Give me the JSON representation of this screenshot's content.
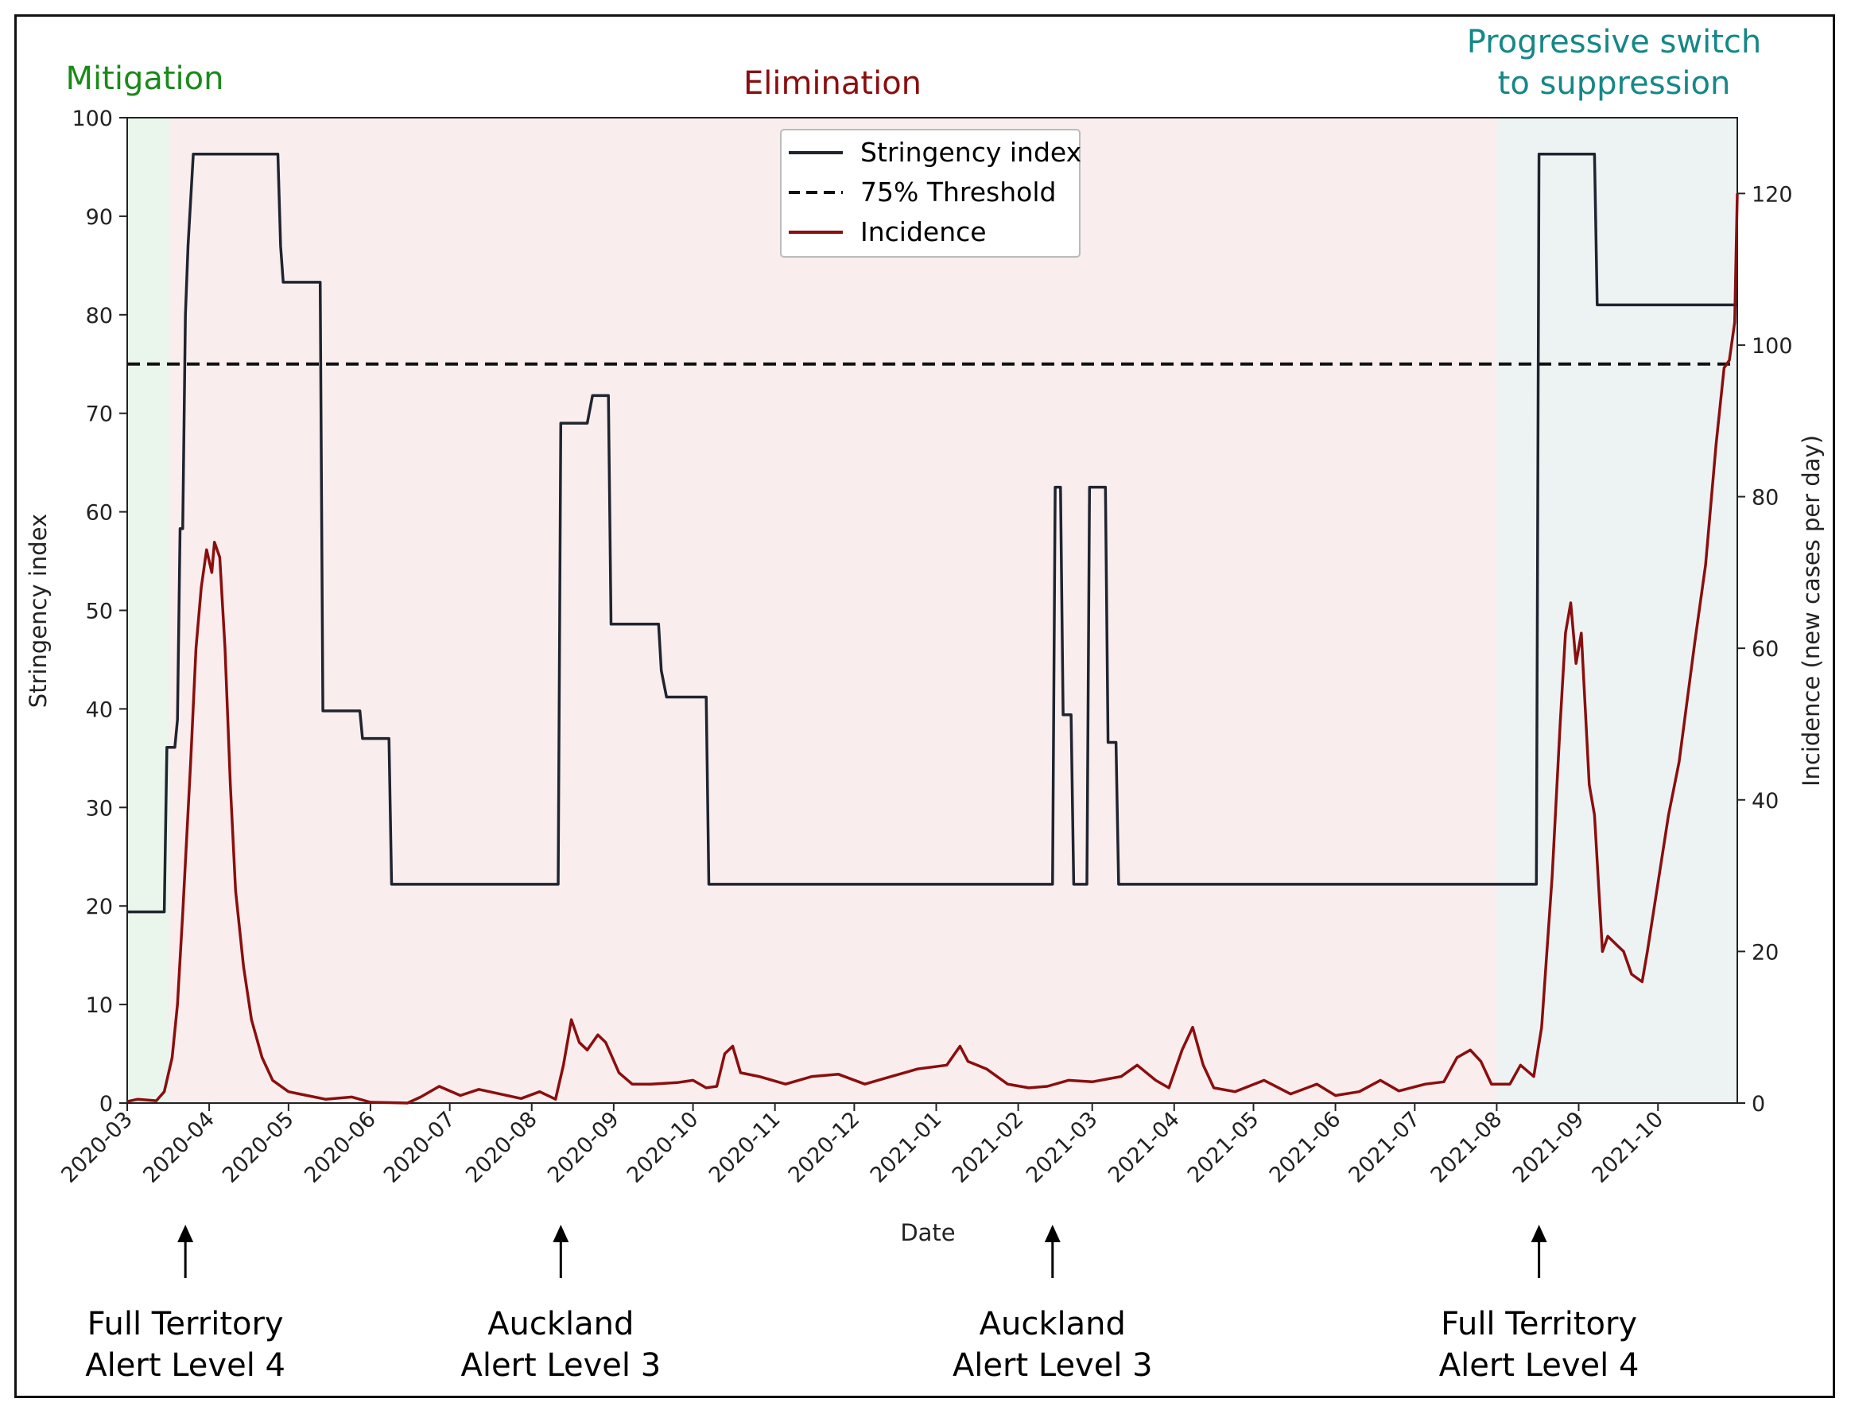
{
  "chart_data": {
    "type": "line",
    "xlabel": "Date",
    "ylabel_left": "Stringency index",
    "ylabel_right": "Incidence (new cases per day)",
    "x_range": [
      "2020-03-01",
      "2021-10-31"
    ],
    "ylim_left": [
      0,
      100
    ],
    "ylim_right": [
      0,
      130
    ],
    "yticks_left": [
      0,
      10,
      20,
      30,
      40,
      50,
      60,
      70,
      80,
      90,
      100
    ],
    "yticks_right": [
      0,
      20,
      40,
      60,
      80,
      100,
      120
    ],
    "xticks": [
      "2020-03",
      "2020-04",
      "2020-05",
      "2020-06",
      "2020-07",
      "2020-08",
      "2020-09",
      "2020-10",
      "2020-11",
      "2020-12",
      "2021-01",
      "2021-02",
      "2021-03",
      "2021-04",
      "2021-05",
      "2021-06",
      "2021-07",
      "2021-08",
      "2021-09",
      "2021-10"
    ],
    "legend": [
      {
        "label": "Stringency index",
        "style": "solid",
        "color": "#1f2430"
      },
      {
        "label": "75% Threshold",
        "style": "dashed",
        "color": "#111111"
      },
      {
        "label": "Incidence",
        "style": "solid",
        "color": "#8b0e0e"
      }
    ],
    "legend_location": "upper center",
    "threshold": 75,
    "phases": [
      {
        "label": "Mitigation",
        "start": "2020-03-01",
        "end": "2020-03-17",
        "text_color": "#1a8a1a",
        "fill": "#eaf5ec"
      },
      {
        "label": "Elimination",
        "start": "2020-03-17",
        "end": "2021-08-01",
        "text_color": "#8b0e0e",
        "fill": "#f9eded"
      },
      {
        "label": "Progressive switch\nto suppression",
        "start": "2021-08-01",
        "end": "2021-10-31",
        "text_color": "#168787",
        "fill": "#edf3f3"
      }
    ],
    "series": [
      {
        "name": "Stringency index",
        "axis": "left",
        "points": [
          [
            "2020-03-01",
            19.4
          ],
          [
            "2020-03-15",
            19.4
          ],
          [
            "2020-03-16",
            36.1
          ],
          [
            "2020-03-19",
            36.1
          ],
          [
            "2020-03-20",
            38.9
          ],
          [
            "2020-03-21",
            58.3
          ],
          [
            "2020-03-22",
            58.3
          ],
          [
            "2020-03-23",
            80.0
          ],
          [
            "2020-03-24",
            87.0
          ],
          [
            "2020-03-26",
            96.3
          ],
          [
            "2020-04-27",
            96.3
          ],
          [
            "2020-04-28",
            87.0
          ],
          [
            "2020-04-29",
            83.3
          ],
          [
            "2020-05-13",
            83.3
          ],
          [
            "2020-05-14",
            39.8
          ],
          [
            "2020-05-28",
            39.8
          ],
          [
            "2020-05-29",
            37.0
          ],
          [
            "2020-06-08",
            37.0
          ],
          [
            "2020-06-09",
            22.2
          ],
          [
            "2020-08-11",
            22.2
          ],
          [
            "2020-08-12",
            69.0
          ],
          [
            "2020-08-22",
            69.0
          ],
          [
            "2020-08-24",
            71.8
          ],
          [
            "2020-08-30",
            71.8
          ],
          [
            "2020-08-31",
            48.6
          ],
          [
            "2020-09-18",
            48.6
          ],
          [
            "2020-09-19",
            43.9
          ],
          [
            "2020-09-21",
            41.2
          ],
          [
            "2020-10-06",
            41.2
          ],
          [
            "2020-10-07",
            22.2
          ],
          [
            "2021-02-14",
            22.2
          ],
          [
            "2021-02-15",
            62.5
          ],
          [
            "2021-02-17",
            62.5
          ],
          [
            "2021-02-18",
            39.4
          ],
          [
            "2021-02-21",
            39.4
          ],
          [
            "2021-02-22",
            22.2
          ],
          [
            "2021-02-27",
            22.2
          ],
          [
            "2021-02-28",
            62.5
          ],
          [
            "2021-03-06",
            62.5
          ],
          [
            "2021-03-07",
            36.6
          ],
          [
            "2021-03-10",
            36.6
          ],
          [
            "2021-03-11",
            22.2
          ],
          [
            "2021-08-16",
            22.2
          ],
          [
            "2021-08-17",
            96.3
          ],
          [
            "2021-09-07",
            96.3
          ],
          [
            "2021-09-08",
            81.0
          ],
          [
            "2021-10-31",
            81.0
          ]
        ]
      },
      {
        "name": "75% Threshold",
        "axis": "left",
        "points": [
          [
            "2020-03-01",
            75
          ],
          [
            "2021-10-31",
            75
          ]
        ]
      },
      {
        "name": "Incidence",
        "axis": "right",
        "points": [
          [
            "2020-03-01",
            0.2
          ],
          [
            "2020-03-05",
            0.5
          ],
          [
            "2020-03-12",
            0.3
          ],
          [
            "2020-03-15",
            1.5
          ],
          [
            "2020-03-18",
            6
          ],
          [
            "2020-03-20",
            13
          ],
          [
            "2020-03-22",
            25
          ],
          [
            "2020-03-25",
            45
          ],
          [
            "2020-03-27",
            60
          ],
          [
            "2020-03-29",
            68
          ],
          [
            "2020-03-31",
            73
          ],
          [
            "2020-04-02",
            70
          ],
          [
            "2020-04-03",
            74
          ],
          [
            "2020-04-05",
            72
          ],
          [
            "2020-04-07",
            60
          ],
          [
            "2020-04-09",
            42
          ],
          [
            "2020-04-11",
            28
          ],
          [
            "2020-04-14",
            18
          ],
          [
            "2020-04-17",
            11
          ],
          [
            "2020-04-21",
            6
          ],
          [
            "2020-04-25",
            3
          ],
          [
            "2020-05-01",
            1.5
          ],
          [
            "2020-05-08",
            1
          ],
          [
            "2020-05-15",
            0.5
          ],
          [
            "2020-05-25",
            0.8
          ],
          [
            "2020-06-01",
            0.1
          ],
          [
            "2020-06-15",
            0
          ],
          [
            "2020-06-20",
            0.8
          ],
          [
            "2020-06-27",
            2.2
          ],
          [
            "2020-07-05",
            1.0
          ],
          [
            "2020-07-12",
            1.8
          ],
          [
            "2020-07-20",
            1.2
          ],
          [
            "2020-07-28",
            0.6
          ],
          [
            "2020-08-04",
            1.5
          ],
          [
            "2020-08-10",
            0.5
          ],
          [
            "2020-08-13",
            5
          ],
          [
            "2020-08-16",
            11
          ],
          [
            "2020-08-19",
            8
          ],
          [
            "2020-08-22",
            7
          ],
          [
            "2020-08-26",
            9
          ],
          [
            "2020-08-29",
            8
          ],
          [
            "2020-09-03",
            4
          ],
          [
            "2020-09-08",
            2.5
          ],
          [
            "2020-09-15",
            2.5
          ],
          [
            "2020-09-25",
            2.7
          ],
          [
            "2020-10-01",
            3
          ],
          [
            "2020-10-06",
            2
          ],
          [
            "2020-10-10",
            2.2
          ],
          [
            "2020-10-13",
            6.5
          ],
          [
            "2020-10-16",
            7.5
          ],
          [
            "2020-10-19",
            4
          ],
          [
            "2020-10-26",
            3.5
          ],
          [
            "2020-11-05",
            2.5
          ],
          [
            "2020-11-15",
            3.5
          ],
          [
            "2020-11-25",
            3.8
          ],
          [
            "2020-12-05",
            2.5
          ],
          [
            "2020-12-15",
            3.5
          ],
          [
            "2020-12-25",
            4.5
          ],
          [
            "2021-01-05",
            5
          ],
          [
            "2021-01-10",
            7.5
          ],
          [
            "2021-01-13",
            5.5
          ],
          [
            "2021-01-20",
            4.5
          ],
          [
            "2021-01-28",
            2.5
          ],
          [
            "2021-02-05",
            2
          ],
          [
            "2021-02-12",
            2.2
          ],
          [
            "2021-02-20",
            3
          ],
          [
            "2021-03-01",
            2.8
          ],
          [
            "2021-03-12",
            3.5
          ],
          [
            "2021-03-18",
            5
          ],
          [
            "2021-03-25",
            3
          ],
          [
            "2021-03-30",
            2
          ],
          [
            "2021-04-04",
            7
          ],
          [
            "2021-04-08",
            10
          ],
          [
            "2021-04-12",
            5
          ],
          [
            "2021-04-16",
            2
          ],
          [
            "2021-04-24",
            1.5
          ],
          [
            "2021-05-05",
            3.0
          ],
          [
            "2021-05-15",
            1.2
          ],
          [
            "2021-05-25",
            2.5
          ],
          [
            "2021-06-01",
            1.0
          ],
          [
            "2021-06-10",
            1.5
          ],
          [
            "2021-06-18",
            3.0
          ],
          [
            "2021-06-25",
            1.6
          ],
          [
            "2021-07-05",
            2.5
          ],
          [
            "2021-07-12",
            2.8
          ],
          [
            "2021-07-17",
            6
          ],
          [
            "2021-07-22",
            7
          ],
          [
            "2021-07-26",
            5.5
          ],
          [
            "2021-07-30",
            2.5
          ],
          [
            "2021-08-06",
            2.5
          ],
          [
            "2021-08-10",
            5
          ],
          [
            "2021-08-15",
            3.5
          ],
          [
            "2021-08-18",
            10
          ],
          [
            "2021-08-22",
            30
          ],
          [
            "2021-08-25",
            50
          ],
          [
            "2021-08-27",
            62
          ],
          [
            "2021-08-29",
            66
          ],
          [
            "2021-08-31",
            58
          ],
          [
            "2021-09-02",
            62
          ],
          [
            "2021-09-05",
            42
          ],
          [
            "2021-09-07",
            38
          ],
          [
            "2021-09-10",
            20
          ],
          [
            "2021-09-12",
            22
          ],
          [
            "2021-09-15",
            21
          ],
          [
            "2021-09-18",
            20
          ],
          [
            "2021-09-21",
            17
          ],
          [
            "2021-09-25",
            16
          ],
          [
            "2021-09-27",
            20
          ],
          [
            "2021-10-01",
            29
          ],
          [
            "2021-10-05",
            38
          ],
          [
            "2021-10-09",
            45
          ],
          [
            "2021-10-12",
            53
          ],
          [
            "2021-10-15",
            61
          ],
          [
            "2021-10-19",
            71
          ],
          [
            "2021-10-23",
            87
          ],
          [
            "2021-10-26",
            97
          ],
          [
            "2021-10-28",
            98
          ],
          [
            "2021-10-30",
            103
          ],
          [
            "2021-10-31",
            120
          ]
        ]
      }
    ],
    "annotations": [
      {
        "date": "2020-03-23",
        "line1": "Full Territory",
        "line2": "Alert Level 4"
      },
      {
        "date": "2020-08-12",
        "line1": "Auckland",
        "line2": "Alert Level 3"
      },
      {
        "date": "2021-02-14",
        "line1": "Auckland",
        "line2": "Alert Level 3"
      },
      {
        "date": "2021-08-17",
        "line1": "Full Territory",
        "line2": "Alert Level 4"
      }
    ]
  }
}
